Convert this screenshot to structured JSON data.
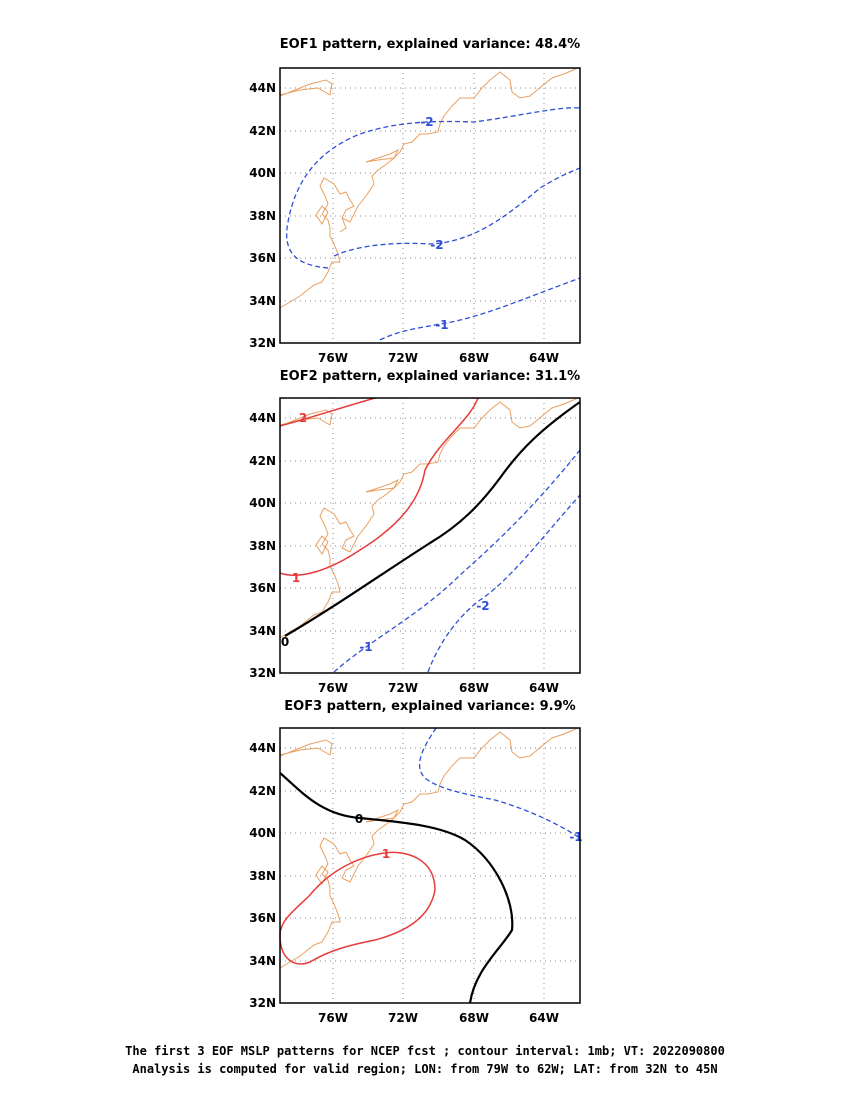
{
  "colors": {
    "coast": "#e8a060",
    "negative": "#2d4fd6",
    "positive": "#e83a3a",
    "zero": "#000000",
    "grid": "#888888"
  },
  "axes": {
    "x_ticks": [
      "76W",
      "72W",
      "68W",
      "64W"
    ],
    "y_ticks": [
      "44N",
      "42N",
      "40N",
      "38N",
      "36N",
      "34N",
      "32N"
    ]
  },
  "panels": [
    {
      "title": "EOF1 pattern, explained variance: 48.4%",
      "contour_labels": [
        "-2",
        "-2",
        "-1"
      ]
    },
    {
      "title": "EOF2 pattern, explained variance: 31.1%",
      "contour_labels": [
        "2",
        "1",
        "0",
        "-1",
        "-2"
      ]
    },
    {
      "title": "EOF3 pattern, explained variance: 9.9%",
      "contour_labels": [
        "0",
        "1",
        "-1"
      ]
    }
  ],
  "caption": {
    "line1": "The first 3 EOF MSLP patterns for NCEP fcst ; contour interval: 1mb; VT: 2022090800",
    "line2": "Analysis is computed for valid region; LON: from 79W to 62W; LAT: from 32N to 45N"
  }
}
